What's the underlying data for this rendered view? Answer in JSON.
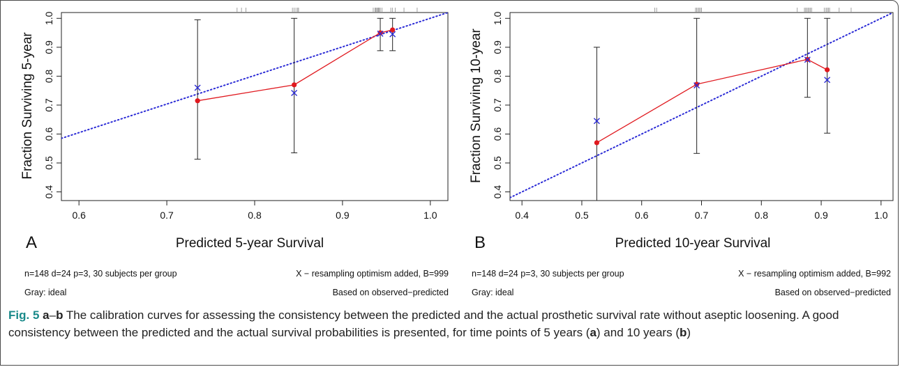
{
  "panels": [
    {
      "letter": "A",
      "xlabel": "Predicted 5-year Survival",
      "ylabel": "Fraction Surviving 5-year",
      "note_left_1": "n=148 d=24 p=3, 30 subjects per group",
      "note_left_2": "Gray: ideal",
      "note_right_1": "X − resampling optimism added, B=999",
      "note_right_2": "Based on observed−predicted"
    },
    {
      "letter": "B",
      "xlabel": "Predicted 10-year Survival",
      "ylabel": "Fraction Surviving 10-year",
      "note_left_1": "n=148 d=24 p=3, 30 subjects per group",
      "note_left_2": "Gray: ideal",
      "note_right_1": "X − resampling optimism added, B=992",
      "note_right_2": "Based on observed−predicted"
    }
  ],
  "caption": {
    "label": "Fig. 5",
    "part1": "a",
    "dash": "–",
    "part2": "b",
    "text1": " The calibration curves for assessing the consistency between the predicted and the actual prosthetic survival rate without aseptic loosening. A good consistency between the predicted and the actual survival probabilities is presented, for time points of 5 years (",
    "ref_a": "a",
    "text2": ") and 10 years (",
    "ref_b": "b",
    "text3": ")"
  },
  "chart_data": [
    {
      "type": "scatter",
      "xlabel": "Predicted 5-year Survival",
      "ylabel": "Fraction Surviving 5-year",
      "xlim": [
        0.58,
        1.02
      ],
      "ylim": [
        0.37,
        1.02
      ],
      "xticks": [
        0.6,
        0.7,
        0.8,
        0.9,
        1.0
      ],
      "yticks": [
        0.4,
        0.5,
        0.6,
        0.7,
        0.8,
        0.9,
        1.0
      ],
      "observed": {
        "x": [
          0.735,
          0.845,
          0.943,
          0.957
        ],
        "y": [
          0.715,
          0.77,
          0.95,
          0.96
        ],
        "color": "#e0191f"
      },
      "corrected": {
        "x": [
          0.735,
          0.845,
          0.943,
          0.957
        ],
        "y": [
          0.76,
          0.742,
          0.947,
          0.945
        ],
        "color": "#2b2bd6"
      },
      "ci_lower": [
        0.513,
        0.535,
        0.888,
        0.888
      ],
      "ci_upper": [
        0.995,
        1.0,
        1.0,
        1.0
      ],
      "ideal_line": {
        "from": [
          0.58,
          0.585
        ],
        "to": [
          1.02,
          1.02
        ],
        "color": "#2b2bd6"
      },
      "rug": [
        0.78,
        0.785,
        0.79,
        0.843,
        0.845,
        0.847,
        0.849,
        0.85,
        0.935,
        0.937,
        0.938,
        0.939,
        0.94,
        0.941,
        0.942,
        0.943,
        0.945,
        0.955,
        0.957,
        0.96,
        0.97,
        0.985
      ],
      "grid": false
    },
    {
      "type": "scatter",
      "xlabel": "Predicted 10-year Survival",
      "ylabel": "Fraction Surviving 10-year",
      "xlim": [
        0.38,
        1.02
      ],
      "ylim": [
        0.37,
        1.02
      ],
      "xticks": [
        0.4,
        0.5,
        0.6,
        0.7,
        0.8,
        0.9,
        1.0
      ],
      "yticks": [
        0.4,
        0.5,
        0.6,
        0.7,
        0.8,
        0.9,
        1.0
      ],
      "observed": {
        "x": [
          0.525,
          0.692,
          0.877,
          0.91
        ],
        "y": [
          0.57,
          0.772,
          0.858,
          0.822
        ],
        "color": "#e0191f"
      },
      "corrected": {
        "x": [
          0.525,
          0.692,
          0.877,
          0.91
        ],
        "y": [
          0.645,
          0.768,
          0.857,
          0.787
        ],
        "color": "#2b2bd6"
      },
      "ci_lower": [
        0.37,
        0.533,
        0.727,
        0.603
      ],
      "ci_upper": [
        0.9,
        1.0,
        1.0,
        1.0
      ],
      "ideal_line": {
        "from": [
          0.38,
          0.38
        ],
        "to": [
          1.02,
          1.02
        ],
        "color": "#2b2bd6"
      },
      "rug": [
        0.622,
        0.625,
        0.69,
        0.692,
        0.694,
        0.696,
        0.698,
        0.7,
        0.86,
        0.872,
        0.874,
        0.876,
        0.878,
        0.88,
        0.882,
        0.884,
        0.905,
        0.908,
        0.91,
        0.912,
        0.914,
        0.93,
        0.95
      ],
      "grid": false
    }
  ]
}
